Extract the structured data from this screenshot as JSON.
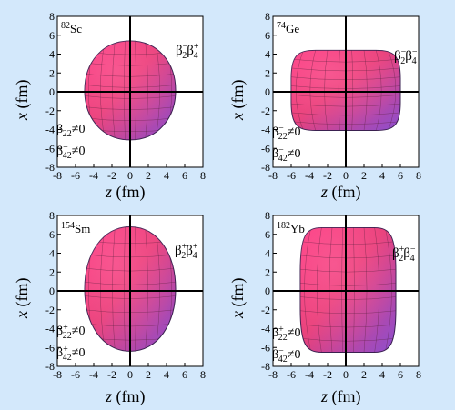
{
  "x_axis_label": {
    "main": "z",
    "unit": "(fm)"
  },
  "y_axis_label": {
    "main": "x",
    "unit": "(fm)"
  },
  "ticks": [
    "-8",
    "-6",
    "-4",
    "-2",
    "0",
    "2",
    "4",
    "6",
    "8"
  ],
  "panels": [
    {
      "id": "sc82",
      "nucleus": {
        "mass": "82",
        "symbol": "Sc"
      },
      "deformation": {
        "b2_sign": "−",
        "b4_sign": "+"
      },
      "conditions": [
        {
          "sub": "22",
          "sign": "−",
          "rel": "≠0"
        },
        {
          "sub": "42",
          "sign": "−",
          "rel": "≠0"
        }
      ],
      "shape": {
        "top": 5.4,
        "bottom": -5.1,
        "left": -5.0,
        "right": 5.0
      }
    },
    {
      "id": "ge74",
      "nucleus": {
        "mass": "74",
        "symbol": "Ge"
      },
      "deformation": {
        "b2_sign": "−",
        "b4_sign": "−"
      },
      "conditions": [
        {
          "sub": "22",
          "sign": "−",
          "rel": "≠0"
        },
        {
          "sub": "42",
          "sign": "−",
          "rel": "≠0"
        }
      ],
      "shape": {
        "top": 4.4,
        "bottom": -4.1,
        "left": -6.0,
        "right": 6.0
      }
    },
    {
      "id": "sm154",
      "nucleus": {
        "mass": "154",
        "symbol": "Sm"
      },
      "deformation": {
        "b2_sign": "+",
        "b4_sign": "+"
      },
      "conditions": [
        {
          "sub": "22",
          "sign": "+",
          "rel": "≠0"
        },
        {
          "sub": "42",
          "sign": "+",
          "rel": "≠0"
        }
      ],
      "shape": {
        "top": 6.8,
        "bottom": -6.4,
        "left": -5.0,
        "right": 5.0
      }
    },
    {
      "id": "yb182",
      "nucleus": {
        "mass": "182",
        "symbol": "Yb"
      },
      "deformation": {
        "b2_sign": "+",
        "b4_sign": "−"
      },
      "conditions": [
        {
          "sub": "22",
          "sign": "+",
          "rel": "≠0"
        },
        {
          "sub": "42",
          "sign": "−",
          "rel": "≠0"
        }
      ],
      "shape": {
        "top": 6.7,
        "bottom": -6.5,
        "left": -5.0,
        "right": 5.5
      }
    }
  ]
}
